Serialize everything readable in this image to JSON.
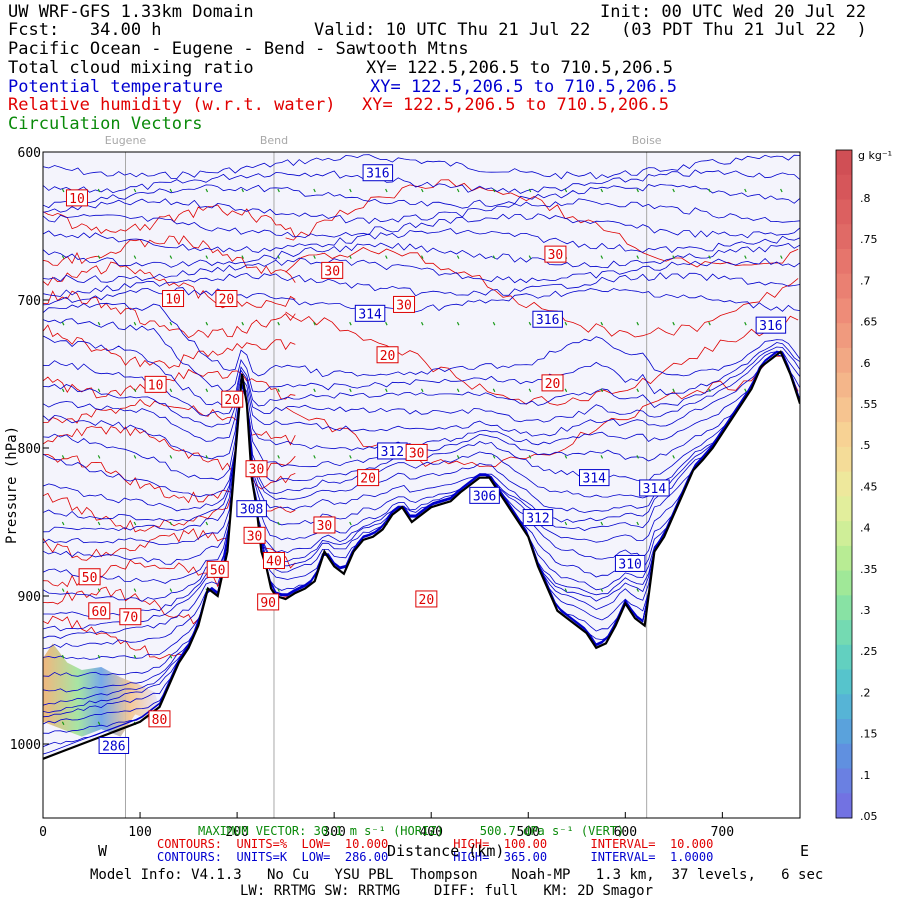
{
  "header": {
    "model_title": "UW WRF-GFS 1.33km Domain",
    "init": "Init: 00 UTC Wed 20 Jul 22",
    "fcst": "Fcst:   34.00 h",
    "valid": "Valid: 10 UTC Thu 21 Jul 22   (03 PDT Thu 21 Jul 22  )",
    "cross_section": "Pacific Ocean - Eugene - Bend - Sawtooth Mtns",
    "field1": "Total cloud mixing ratio",
    "field1_xy": "XY= 122.5,206.5 to 710.5,206.5",
    "field2": "Potential temperature",
    "field2_xy": "XY= 122.5,206.5 to 710.5,206.5",
    "field3": "Relative humidity (w.r.t. water)",
    "field3_xy": "XY= 122.5,206.5 to 710.5,206.5",
    "field4": "Circulation Vectors"
  },
  "footer": {
    "max_vector": "MAXIMUM VECTOR: 30.1 m s⁻¹ (HORIZ)     500.7 dPa s⁻¹ (VERT)",
    "rh_contours": "CONTOURS:  UNITS=%  LOW=  10.000         HIGH=  100.00      INTERVAL=  10.000",
    "theta_contours": "CONTOURS:  UNITS=K  LOW=  286.00         HIGH=  365.00      INTERVAL=  1.0000",
    "xlabel": "Distance (km)",
    "west": "W",
    "east": "E",
    "model_info": "Model Info: V4.1.3   No Cu   YSU PBL  Thompson    Noah-MP   1.3 km,  37 levels,   6 sec",
    "model_info2": "LW: RRTMG SW: RRTMG    DIFF: full   KM: 2D Smagor"
  },
  "chart_data": {
    "type": "contour",
    "ylabel": "Pressure (hPa)",
    "xlim": [
      0,
      780
    ],
    "ylim": [
      1050,
      600
    ],
    "x_ticks": [
      0,
      100,
      200,
      300,
      400,
      500,
      600,
      700
    ],
    "y_ticks": [
      600,
      700,
      800,
      900,
      1000
    ],
    "y_tick_labels": [
      "600",
      "700",
      "800",
      "900",
      "1000"
    ],
    "locations": [
      {
        "name": "Eugene",
        "x": 85
      },
      {
        "name": "Bend",
        "x": 238
      },
      {
        "name": "Boise",
        "x": 622
      }
    ],
    "terrain": {
      "x": [
        0,
        20,
        40,
        60,
        80,
        100,
        120,
        140,
        150,
        160,
        170,
        180,
        190,
        195,
        200,
        205,
        210,
        215,
        220,
        225,
        230,
        235,
        240,
        250,
        260,
        270,
        280,
        290,
        300,
        310,
        320,
        330,
        340,
        350,
        360,
        370,
        380,
        390,
        400,
        410,
        420,
        430,
        440,
        450,
        460,
        470,
        480,
        490,
        500,
        510,
        520,
        530,
        540,
        550,
        560,
        570,
        580,
        590,
        600,
        610,
        620,
        630,
        640,
        650,
        660,
        670,
        680,
        690,
        700,
        710,
        720,
        730,
        740,
        750,
        760,
        770,
        780
      ],
      "p": [
        1010,
        1005,
        1000,
        995,
        990,
        985,
        975,
        945,
        935,
        920,
        895,
        900,
        870,
        830,
        790,
        750,
        770,
        820,
        840,
        870,
        880,
        895,
        900,
        902,
        898,
        895,
        890,
        870,
        880,
        885,
        870,
        862,
        860,
        855,
        845,
        840,
        850,
        845,
        840,
        838,
        836,
        830,
        825,
        820,
        820,
        830,
        840,
        850,
        860,
        880,
        895,
        910,
        915,
        920,
        925,
        935,
        932,
        920,
        905,
        915,
        920,
        870,
        860,
        845,
        830,
        815,
        808,
        800,
        790,
        780,
        770,
        760,
        745,
        740,
        735,
        750,
        770
      ]
    },
    "theta_isolines": {
      "units": "K",
      "low": 286,
      "high": 365,
      "interval": 1,
      "labels": [
        {
          "value": "316",
          "x": 345,
          "p": 614
        },
        {
          "value": "316",
          "x": 520,
          "p": 713
        },
        {
          "value": "316",
          "x": 750,
          "p": 717
        },
        {
          "value": "314",
          "x": 337,
          "p": 709
        },
        {
          "value": "314",
          "x": 568,
          "p": 820
        },
        {
          "value": "314",
          "x": 630,
          "p": 827
        },
        {
          "value": "312",
          "x": 360,
          "p": 802
        },
        {
          "value": "312",
          "x": 510,
          "p": 847
        },
        {
          "value": "308",
          "x": 215,
          "p": 841
        },
        {
          "value": "306",
          "x": 455,
          "p": 832
        },
        {
          "value": "286",
          "x": 73,
          "p": 1001
        },
        {
          "value": "310",
          "x": 605,
          "p": 878
        }
      ]
    },
    "rh_contours": {
      "units": "%",
      "low": 10,
      "high": 100,
      "interval": 10,
      "labels": [
        {
          "value": "10",
          "x": 35,
          "p": 631
        },
        {
          "value": "10",
          "x": 134,
          "p": 699
        },
        {
          "value": "10",
          "x": 116,
          "p": 757
        },
        {
          "value": "20",
          "x": 189,
          "p": 699
        },
        {
          "value": "20",
          "x": 355,
          "p": 737
        },
        {
          "value": "20",
          "x": 525,
          "p": 756
        },
        {
          "value": "20",
          "x": 195,
          "p": 767
        },
        {
          "value": "20",
          "x": 335,
          "p": 820
        },
        {
          "value": "20",
          "x": 395,
          "p": 902
        },
        {
          "value": "30",
          "x": 298,
          "p": 680
        },
        {
          "value": "30",
          "x": 372,
          "p": 703
        },
        {
          "value": "30",
          "x": 528,
          "p": 669
        },
        {
          "value": "30",
          "x": 220,
          "p": 814
        },
        {
          "value": "30",
          "x": 385,
          "p": 803
        },
        {
          "value": "30",
          "x": 218,
          "p": 859
        },
        {
          "value": "30",
          "x": 290,
          "p": 852
        },
        {
          "value": "40",
          "x": 238,
          "p": 876
        },
        {
          "value": "50",
          "x": 48,
          "p": 887
        },
        {
          "value": "50",
          "x": 180,
          "p": 882
        },
        {
          "value": "60",
          "x": 58,
          "p": 910
        },
        {
          "value": "70",
          "x": 90,
          "p": 914
        },
        {
          "value": "80",
          "x": 120,
          "p": 983
        },
        {
          "value": "90",
          "x": 232,
          "p": 904
        }
      ]
    },
    "colorbar": {
      "units": "g kg⁻¹",
      "ticks": [
        ".8",
        ".75",
        ".7",
        ".65",
        ".6",
        ".55",
        ".5",
        ".45",
        ".4",
        ".35",
        ".3",
        ".25",
        ".2",
        ".15",
        ".1",
        ".05"
      ],
      "colors": [
        "#d04f55",
        "#d6565a",
        "#dc6060",
        "#e06a66",
        "#e6756c",
        "#ea8072",
        "#ee8c78",
        "#f09a7e",
        "#f2a884",
        "#f4b68a",
        "#f6c490",
        "#f7d294",
        "#f4dc98",
        "#eee89c",
        "#e2ee9c",
        "#cfee98",
        "#b8ec94",
        "#a0e898",
        "#88e2a4",
        "#74dab2",
        "#62d0c0",
        "#56c4cc",
        "#56b4d6",
        "#5aa2dc",
        "#6090e0",
        "#6a80e2",
        "#7272e2"
      ]
    }
  }
}
